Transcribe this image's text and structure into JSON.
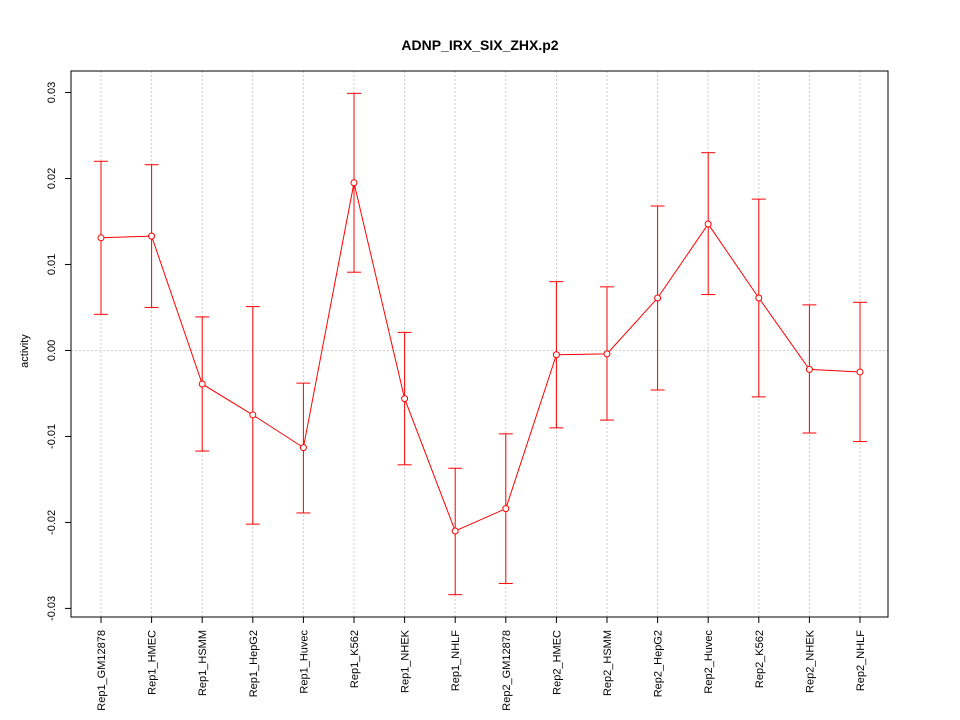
{
  "chart_data": {
    "type": "line",
    "title": "ADNP_IRX_SIX_ZHX.p2",
    "xlabel": "",
    "ylabel": "activity",
    "ylim": [
      -0.031,
      0.0325
    ],
    "yticks": [
      -0.03,
      -0.02,
      -0.01,
      0.0,
      0.01,
      0.02,
      0.03
    ],
    "ytick_labels": [
      "-0.03",
      "-0.02",
      "-0.01",
      "0.00",
      "0.01",
      "0.02",
      "0.03"
    ],
    "reference_line": 0.0,
    "grid": "vertical dotted",
    "series_color": "#ff0000",
    "categories": [
      "Rep1_GM12878",
      "Rep1_HMEC",
      "Rep1_HSMM",
      "Rep1_HepG2",
      "Rep1_Huvec",
      "Rep1_K562",
      "Rep1_NHEK",
      "Rep1_NHLF",
      "Rep2_GM12878",
      "Rep2_HMEC",
      "Rep2_HSMM",
      "Rep2_HepG2",
      "Rep2_Huvec",
      "Rep2_K562",
      "Rep2_NHEK",
      "Rep2_NHLF"
    ],
    "values": [
      0.0131,
      0.0133,
      -0.0039,
      -0.0075,
      -0.0113,
      0.0195,
      -0.0056,
      -0.021,
      -0.0184,
      -0.0005,
      -0.0004,
      0.0061,
      0.0147,
      0.0061,
      -0.0022,
      -0.0025
    ],
    "upper": [
      0.022,
      0.0216,
      0.0039,
      0.0051,
      -0.0038,
      0.0299,
      0.0021,
      -0.0137,
      -0.0097,
      0.008,
      0.0074,
      0.0168,
      0.023,
      0.0176,
      0.0053,
      0.0056
    ],
    "lower": [
      0.0042,
      0.005,
      -0.0117,
      -0.0202,
      -0.0189,
      0.0091,
      -0.0133,
      -0.0284,
      -0.0271,
      -0.009,
      -0.0081,
      -0.0046,
      0.0065,
      -0.0054,
      -0.0096,
      -0.0106
    ]
  }
}
